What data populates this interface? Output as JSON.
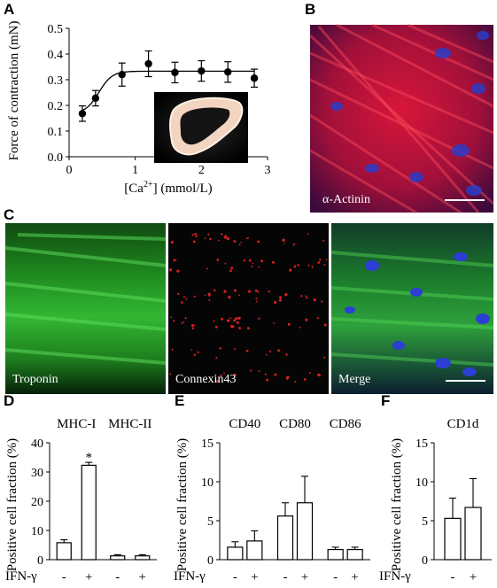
{
  "panels": {
    "A": {
      "label": "A"
    },
    "B": {
      "label": "B",
      "stain": "α-Actinin"
    },
    "C": {
      "label": "C",
      "stains": [
        "Troponin",
        "Connexin43",
        "Merge"
      ]
    },
    "D": {
      "label": "D"
    },
    "E": {
      "label": "E"
    },
    "F": {
      "label": "F"
    }
  },
  "treatment": {
    "label": "IFN-γ",
    "minus": "-",
    "plus": "+"
  },
  "chart_data": [
    {
      "panel": "A",
      "type": "line",
      "ylabel": "Force of contraction (mN)",
      "xlabel_prefix": "[Ca",
      "xlabel_sup": "2+",
      "xlabel_suffix": "] (mmol/L)",
      "xlim": [
        0,
        3
      ],
      "ylim": [
        0,
        0.5
      ],
      "xticks": [
        "0",
        "1",
        "2",
        "3"
      ],
      "yticks": [
        "0.0",
        "0.1",
        "0.2",
        "0.3",
        "0.4",
        "0.5"
      ],
      "x": [
        0.2,
        0.4,
        0.8,
        1.2,
        1.6,
        2.0,
        2.4,
        2.8
      ],
      "y": [
        0.168,
        0.228,
        0.32,
        0.362,
        0.328,
        0.334,
        0.33,
        0.306
      ],
      "err": [
        0.03,
        0.03,
        0.045,
        0.05,
        0.04,
        0.04,
        0.04,
        0.035
      ]
    },
    {
      "panel": "D",
      "type": "bar",
      "ylabel": "Positive cell fraction (%)",
      "ylim": [
        0,
        40
      ],
      "yticks": [
        "0",
        "10",
        "20",
        "30",
        "40"
      ],
      "groups": [
        "MHC-I",
        "MHC-II"
      ],
      "values": [
        5.8,
        32.3,
        1.3,
        1.3
      ],
      "err": [
        1.0,
        1.0,
        0.4,
        0.4
      ],
      "annotation": "*"
    },
    {
      "panel": "E",
      "type": "bar",
      "ylabel": "Positive cell fraction (%)",
      "ylim": [
        0,
        15
      ],
      "yticks": [
        "0",
        "5",
        "10",
        "15"
      ],
      "groups": [
        "CD40",
        "CD80",
        "CD86"
      ],
      "values": [
        1.6,
        2.4,
        5.6,
        7.3,
        1.3,
        1.3
      ],
      "err": [
        0.7,
        1.3,
        1.7,
        3.4,
        0.3,
        0.3
      ]
    },
    {
      "panel": "F",
      "type": "bar",
      "ylabel": "Positive cell fraction (%)",
      "ylim": [
        0,
        15
      ],
      "yticks": [
        "0",
        "5",
        "10",
        "15"
      ],
      "groups": [
        "CD1d"
      ],
      "values": [
        5.3,
        6.7
      ],
      "err": [
        2.6,
        3.7
      ]
    }
  ]
}
